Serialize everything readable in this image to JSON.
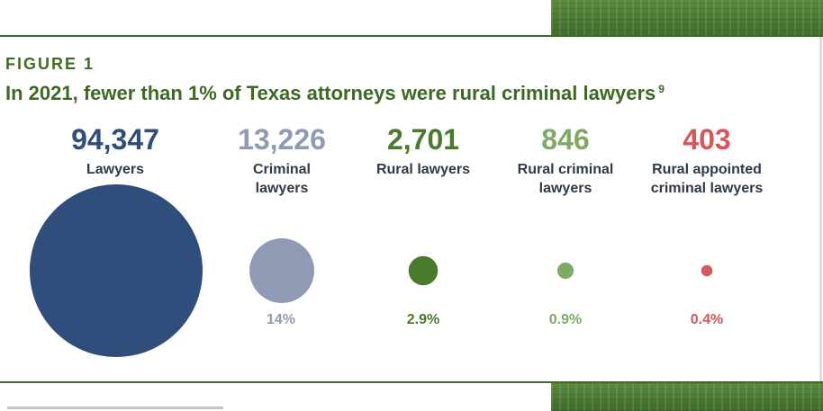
{
  "figure_label": "FIGURE 1",
  "title": "In 2021, fewer than 1% of Texas attorneys were rural criminal lawyers",
  "title_footnote": "9",
  "chart_data": {
    "type": "bubble",
    "categories": [
      "Lawyers",
      "Criminal lawyers",
      "Rural lawyers",
      "Rural criminal lawyers",
      "Rural appointed criminal lawyers"
    ],
    "values": [
      94347,
      13226,
      2701,
      846,
      403
    ],
    "value_labels": [
      "94,347",
      "13,226",
      "2,701",
      "846",
      "403"
    ],
    "percent_labels": [
      "",
      "14%",
      "2.9%",
      "0.9%",
      "0.4%"
    ],
    "colors": [
      "#2f4e7b",
      "#8f9ab4",
      "#4a7a2c",
      "#7faa63",
      "#d9545b"
    ]
  }
}
